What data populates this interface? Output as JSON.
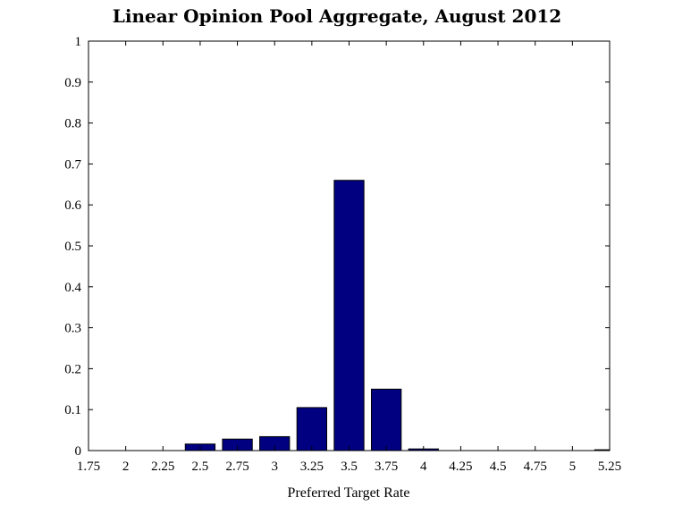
{
  "chart_data": {
    "type": "bar",
    "title": "Linear Opinion Pool Aggregate, August 2012",
    "xlabel": "Preferred Target Rate",
    "ylabel": "",
    "xlim": [
      1.75,
      5.25
    ],
    "ylim": [
      0,
      1
    ],
    "x_ticks": [
      "1.75",
      "2",
      "2.25",
      "2.5",
      "2.75",
      "3",
      "3.25",
      "3.5",
      "3.75",
      "4",
      "4.25",
      "4.5",
      "4.75",
      "5",
      "5.25"
    ],
    "y_ticks": [
      "0",
      "0.1",
      "0.2",
      "0.3",
      "0.4",
      "0.5",
      "0.6",
      "0.7",
      "0.8",
      "0.9",
      "1"
    ],
    "bar_width": 0.2,
    "categories": [
      2.5,
      2.75,
      3,
      3.25,
      3.5,
      3.75,
      4,
      5.25
    ],
    "values": [
      0.016,
      0.028,
      0.034,
      0.105,
      0.66,
      0.15,
      0.004,
      0.002
    ],
    "bar_color": "#000080",
    "grid": false,
    "legend": false
  }
}
